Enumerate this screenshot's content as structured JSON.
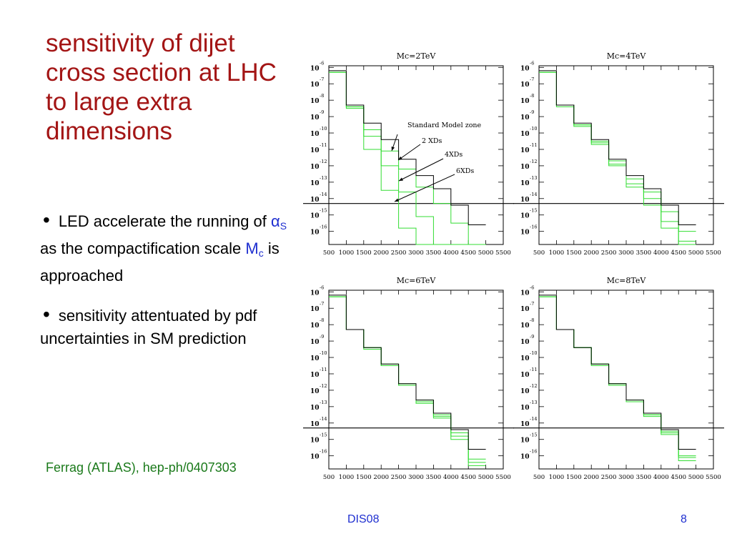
{
  "slide": {
    "title": "sensitivity of dijet cross section at LHC to large extra dimensions",
    "bullets": [
      {
        "parts": [
          {
            "text": "LED accelerate the running of ",
            "style": "normal"
          },
          {
            "text": "α",
            "style": "blue"
          },
          {
            "text": "S",
            "style": "blue-sub"
          },
          {
            "text": " as the compactification scale ",
            "style": "normal"
          },
          {
            "text": "M",
            "style": "blue"
          },
          {
            "text": "c",
            "style": "blue-sub"
          },
          {
            "text": " is approached",
            "style": "normal"
          }
        ]
      },
      {
        "parts": [
          {
            "text": "sensitivity attentuated by pdf uncertainties in SM prediction",
            "style": "normal"
          }
        ]
      }
    ],
    "bullet_glyph": "•",
    "citation": "Ferrag (ATLAS), hep-ph/0407303",
    "footer_center": "DIS08",
    "page_number": "8"
  },
  "colors": {
    "title": "#a31515",
    "accent_blue": "#1f2fd0",
    "citation_green": "#1b7a1b",
    "sm_line": "#000000",
    "xd_line": "#33dd33"
  },
  "chart_data": [
    {
      "type": "line",
      "title": "Mc=2TeV",
      "xlim": [
        500,
        5500
      ],
      "x_ticks": [
        500,
        1000,
        1500,
        2000,
        2500,
        3000,
        3500,
        4000,
        4500,
        5000,
        5500
      ],
      "y_scale": "log",
      "ylim": [
        -16.8,
        -5.9
      ],
      "y_tick_exponents": [
        -6,
        -7,
        -8,
        -9,
        -10,
        -11,
        -12,
        -13,
        -14,
        -15,
        -16
      ],
      "y_tick_base": "10",
      "reference_line_exponent": -14.3,
      "bin_edges": [
        500,
        1000,
        1500,
        2000,
        2500,
        3000,
        3500,
        4000,
        4500,
        5000
      ],
      "series": [
        {
          "name": "Standard Model zone",
          "color": "#000000",
          "exponents": [
            -6.2,
            -8.3,
            -9.4,
            -10.4,
            -11.6,
            -12.6,
            -13.4,
            -14.4,
            -15.6
          ]
        },
        {
          "name": "2 XDs",
          "color": "#33dd33",
          "exponents": [
            -6.3,
            -8.4,
            -9.8,
            -11.1,
            -12.2,
            -13.3,
            -14.3,
            -15.5,
            -16.8
          ]
        },
        {
          "name": "4XDs",
          "color": "#33dd33",
          "exponents": [
            -6.3,
            -8.4,
            -10.2,
            -12.0,
            -13.6,
            -15.1,
            -16.8,
            -16.8,
            -16.8
          ]
        },
        {
          "name": "6XDs",
          "color": "#33dd33",
          "exponents": [
            -6.3,
            -8.5,
            -11.0,
            -13.5,
            -15.8,
            -16.8,
            -16.8,
            -16.8,
            -16.8
          ]
        }
      ],
      "annotations": [
        "Standard Model zone",
        "2 XDs",
        "4XDs",
        "6XDs"
      ]
    },
    {
      "type": "line",
      "title": "Mc=4TeV",
      "xlim": [
        500,
        5500
      ],
      "x_ticks": [
        500,
        1000,
        1500,
        2000,
        2500,
        3000,
        3500,
        4000,
        4500,
        5000,
        5500
      ],
      "y_scale": "log",
      "ylim": [
        -16.8,
        -5.9
      ],
      "y_tick_exponents": [
        -6,
        -7,
        -8,
        -9,
        -10,
        -11,
        -12,
        -13,
        -14,
        -15,
        -16
      ],
      "y_tick_base": "10",
      "reference_line_exponent": -14.3,
      "bin_edges": [
        500,
        1000,
        1500,
        2000,
        2500,
        3000,
        3500,
        4000,
        4500,
        5000
      ],
      "series": [
        {
          "name": "Standard Model zone",
          "color": "#000000",
          "exponents": [
            -6.2,
            -8.3,
            -9.4,
            -10.4,
            -11.6,
            -12.6,
            -13.4,
            -14.4,
            -15.6
          ]
        },
        {
          "name": "2 XDs",
          "color": "#33dd33",
          "exponents": [
            -6.3,
            -8.3,
            -9.5,
            -10.5,
            -11.7,
            -12.8,
            -13.6,
            -14.8,
            -16.0
          ]
        },
        {
          "name": "4XDs",
          "color": "#33dd33",
          "exponents": [
            -6.3,
            -8.3,
            -9.5,
            -10.6,
            -11.9,
            -13.1,
            -14.0,
            -15.4,
            -16.6
          ]
        },
        {
          "name": "6XDs",
          "color": "#33dd33",
          "exponents": [
            -6.3,
            -8.4,
            -9.6,
            -10.7,
            -12.0,
            -13.3,
            -14.4,
            -15.8,
            -16.8
          ]
        }
      ],
      "annotations": []
    },
    {
      "type": "line",
      "title": "Mc=6TeV",
      "xlim": [
        500,
        5500
      ],
      "x_ticks": [
        500,
        1000,
        1500,
        2000,
        2500,
        3000,
        3500,
        4000,
        4500,
        5000,
        5500
      ],
      "y_scale": "log",
      "ylim": [
        -16.8,
        -5.9
      ],
      "y_tick_exponents": [
        -6,
        -7,
        -8,
        -9,
        -10,
        -11,
        -12,
        -13,
        -14,
        -15,
        -16
      ],
      "y_tick_base": "10",
      "reference_line_exponent": -14.3,
      "bin_edges": [
        500,
        1000,
        1500,
        2000,
        2500,
        3000,
        3500,
        4000,
        4500,
        5000
      ],
      "series": [
        {
          "name": "Standard Model zone",
          "color": "#000000",
          "exponents": [
            -6.2,
            -8.3,
            -9.4,
            -10.4,
            -11.6,
            -12.6,
            -13.4,
            -14.4,
            -15.6
          ]
        },
        {
          "name": "2 XDs",
          "color": "#33dd33",
          "exponents": [
            -6.3,
            -8.3,
            -9.4,
            -10.4,
            -11.6,
            -12.6,
            -13.5,
            -14.6,
            -16.2
          ]
        },
        {
          "name": "4XDs",
          "color": "#33dd33",
          "exponents": [
            -6.3,
            -8.3,
            -9.4,
            -10.5,
            -11.7,
            -12.7,
            -13.6,
            -14.8,
            -16.4
          ]
        },
        {
          "name": "6XDs",
          "color": "#33dd33",
          "exponents": [
            -6.3,
            -8.3,
            -9.5,
            -10.5,
            -11.7,
            -12.8,
            -13.7,
            -15.0,
            -16.6
          ]
        }
      ],
      "annotations": []
    },
    {
      "type": "line",
      "title": "Mc=8TeV",
      "xlim": [
        500,
        5500
      ],
      "x_ticks": [
        500,
        1000,
        1500,
        2000,
        2500,
        3000,
        3500,
        4000,
        4500,
        5000,
        5500
      ],
      "y_scale": "log",
      "ylim": [
        -16.8,
        -5.9
      ],
      "y_tick_exponents": [
        -6,
        -7,
        -8,
        -9,
        -10,
        -11,
        -12,
        -13,
        -14,
        -15,
        -16
      ],
      "y_tick_base": "10",
      "reference_line_exponent": -14.3,
      "bin_edges": [
        500,
        1000,
        1500,
        2000,
        2500,
        3000,
        3500,
        4000,
        4500,
        5000
      ],
      "series": [
        {
          "name": "Standard Model zone",
          "color": "#000000",
          "exponents": [
            -6.2,
            -8.3,
            -9.4,
            -10.4,
            -11.6,
            -12.6,
            -13.4,
            -14.4,
            -15.6
          ]
        },
        {
          "name": "2 XDs",
          "color": "#33dd33",
          "exponents": [
            -6.3,
            -8.3,
            -9.4,
            -10.4,
            -11.6,
            -12.6,
            -13.5,
            -14.5,
            -16.0
          ]
        },
        {
          "name": "4XDs",
          "color": "#33dd33",
          "exponents": [
            -6.3,
            -8.3,
            -9.4,
            -10.4,
            -11.6,
            -12.7,
            -13.5,
            -14.6,
            -16.1
          ]
        },
        {
          "name": "6XDs",
          "color": "#33dd33",
          "exponents": [
            -6.3,
            -8.3,
            -9.4,
            -10.5,
            -11.7,
            -12.7,
            -13.6,
            -14.7,
            -16.3
          ]
        }
      ],
      "annotations": []
    }
  ]
}
